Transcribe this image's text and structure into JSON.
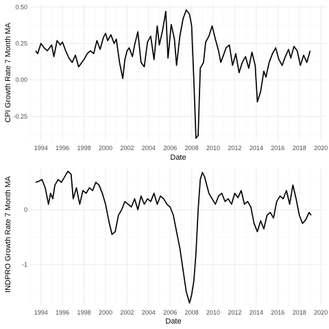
{
  "chart_data": [
    {
      "type": "line",
      "xlabel": "Date",
      "ylabel": "CPI Growth Rate 7 Month MA",
      "xlim": [
        1993,
        2020.5
      ],
      "ylim": [
        -0.42,
        0.52
      ],
      "x_ticks": [
        "1994",
        "1996",
        "1998",
        "2000",
        "2002",
        "2004",
        "2006",
        "2008",
        "2010",
        "2012",
        "2014",
        "2016",
        "2018",
        "2020"
      ],
      "y_ticks": [
        "0.50",
        "0.25",
        "0.00",
        "-0.25"
      ],
      "grid": true,
      "line_color": "#000000",
      "series": [
        {
          "x": [
            1993.5,
            1993.7,
            1994.0,
            1994.3,
            1994.6,
            1995.0,
            1995.2,
            1995.5,
            1995.8,
            1996.0,
            1996.3,
            1996.6,
            1996.9,
            1997.2,
            1997.5,
            1997.8,
            1998.0,
            1998.3,
            1998.6,
            1998.9,
            1999.2,
            1999.5,
            1999.8,
            2000.0,
            2000.2,
            2000.5,
            2000.8,
            2001.0,
            2001.3,
            2001.6,
            2001.8,
            2002.0,
            2002.2,
            2002.5,
            2002.7,
            2003.0,
            2003.3,
            2003.6,
            2003.9,
            2004.2,
            2004.5,
            2004.8,
            2005.0,
            2005.3,
            2005.6,
            2005.8,
            2006.1,
            2006.4,
            2006.6,
            2006.9,
            2007.2,
            2007.5,
            2007.8,
            2008.0,
            2008.2,
            2008.4,
            2008.6,
            2008.8,
            2009.1,
            2009.3,
            2009.6,
            2009.9,
            2010.2,
            2010.5,
            2010.7,
            2011.0,
            2011.2,
            2011.5,
            2011.8,
            2012.1,
            2012.4,
            2012.7,
            2013.0,
            2013.3,
            2013.6,
            2013.9,
            2014.1,
            2014.4,
            2014.7,
            2014.9,
            2015.2,
            2015.5,
            2015.8,
            2016.1,
            2016.4,
            2016.7,
            2017.0,
            2017.2,
            2017.5,
            2017.8,
            2018.1,
            2018.4,
            2018.7,
            2019.0
          ],
          "y": [
            0.2,
            0.18,
            0.25,
            0.22,
            0.2,
            0.24,
            0.16,
            0.27,
            0.24,
            0.26,
            0.2,
            0.15,
            0.12,
            0.17,
            0.09,
            0.12,
            0.14,
            0.18,
            0.2,
            0.18,
            0.27,
            0.21,
            0.29,
            0.32,
            0.27,
            0.31,
            0.25,
            0.28,
            0.12,
            0.01,
            0.14,
            0.2,
            0.22,
            0.16,
            0.24,
            0.33,
            0.12,
            0.09,
            0.26,
            0.3,
            0.14,
            0.37,
            0.24,
            0.34,
            0.47,
            0.15,
            0.38,
            0.28,
            0.1,
            0.3,
            0.42,
            0.48,
            0.45,
            0.37,
            0.0,
            -0.4,
            -0.38,
            0.08,
            0.12,
            0.26,
            0.3,
            0.37,
            0.28,
            0.2,
            0.12,
            0.18,
            0.22,
            0.24,
            0.1,
            0.18,
            0.05,
            0.12,
            0.16,
            0.08,
            0.19,
            0.1,
            -0.15,
            -0.08,
            0.06,
            0.02,
            0.12,
            0.18,
            0.22,
            0.14,
            0.1,
            0.16,
            0.21,
            0.15,
            0.23,
            0.2,
            0.1,
            0.17,
            0.12,
            0.2
          ]
        }
      ]
    },
    {
      "type": "line",
      "xlabel": "Date",
      "ylabel": "INDPRO Growth Rate 7 Month MA",
      "xlim": [
        1993,
        2020.5
      ],
      "ylim": [
        -1.75,
        0.75
      ],
      "x_ticks": [
        "1994",
        "1996",
        "1998",
        "2000",
        "2002",
        "2004",
        "2006",
        "2008",
        "2010",
        "2012",
        "2014",
        "2016",
        "2018",
        "2020"
      ],
      "y_ticks": [
        "0",
        "-1"
      ],
      "grid": true,
      "line_color": "#000000",
      "series": [
        {
          "x": [
            1993.5,
            1993.8,
            1994.1,
            1994.4,
            1994.7,
            1994.9,
            1995.1,
            1995.3,
            1995.6,
            1995.9,
            1996.2,
            1996.5,
            1996.8,
            1997.0,
            1997.3,
            1997.6,
            1997.9,
            1998.2,
            1998.5,
            1998.8,
            1999.1,
            1999.4,
            1999.7,
            2000.0,
            2000.3,
            2000.6,
            2000.9,
            2001.2,
            2001.5,
            2001.8,
            2002.1,
            2002.4,
            2002.7,
            2003.0,
            2003.3,
            2003.6,
            2003.9,
            2004.2,
            2004.5,
            2004.8,
            2005.1,
            2005.4,
            2005.7,
            2006.0,
            2006.3,
            2006.6,
            2006.9,
            2007.2,
            2007.5,
            2007.8,
            2008.0,
            2008.2,
            2008.4,
            2008.6,
            2008.8,
            2009.0,
            2009.2,
            2009.4,
            2009.6,
            2009.9,
            2010.2,
            2010.5,
            2010.8,
            2011.1,
            2011.4,
            2011.7,
            2012.0,
            2012.3,
            2012.6,
            2012.9,
            2013.2,
            2013.5,
            2013.8,
            2014.1,
            2014.4,
            2014.7,
            2015.0,
            2015.3,
            2015.6,
            2015.9,
            2016.2,
            2016.5,
            2016.8,
            2017.1,
            2017.4,
            2017.7,
            2018.0,
            2018.3,
            2018.6,
            2018.9,
            2019.1
          ],
          "y": [
            0.5,
            0.52,
            0.55,
            0.4,
            0.1,
            0.3,
            0.2,
            0.45,
            0.55,
            0.5,
            0.6,
            0.7,
            0.65,
            0.2,
            0.4,
            0.1,
            0.35,
            0.3,
            0.4,
            0.35,
            0.5,
            0.45,
            0.3,
            0.1,
            -0.2,
            -0.45,
            -0.4,
            -0.1,
            0.0,
            0.15,
            0.1,
            0.05,
            0.2,
            0.0,
            0.25,
            0.1,
            0.2,
            0.15,
            0.3,
            0.1,
            0.25,
            0.2,
            0.1,
            0.05,
            -0.1,
            -0.4,
            -0.7,
            -1.1,
            -1.5,
            -1.7,
            -1.55,
            -1.3,
            -0.8,
            0.0,
            0.55,
            0.68,
            0.6,
            0.45,
            0.3,
            0.2,
            0.1,
            0.25,
            0.3,
            0.15,
            0.2,
            0.1,
            0.3,
            0.22,
            0.35,
            0.1,
            0.15,
            0.05,
            -0.25,
            -0.4,
            -0.2,
            -0.35,
            -0.1,
            -0.05,
            -0.15,
            0.15,
            0.25,
            0.2,
            0.35,
            0.1,
            0.45,
            0.2,
            -0.1,
            -0.25,
            -0.18,
            -0.05,
            -0.1
          ]
        }
      ]
    }
  ]
}
